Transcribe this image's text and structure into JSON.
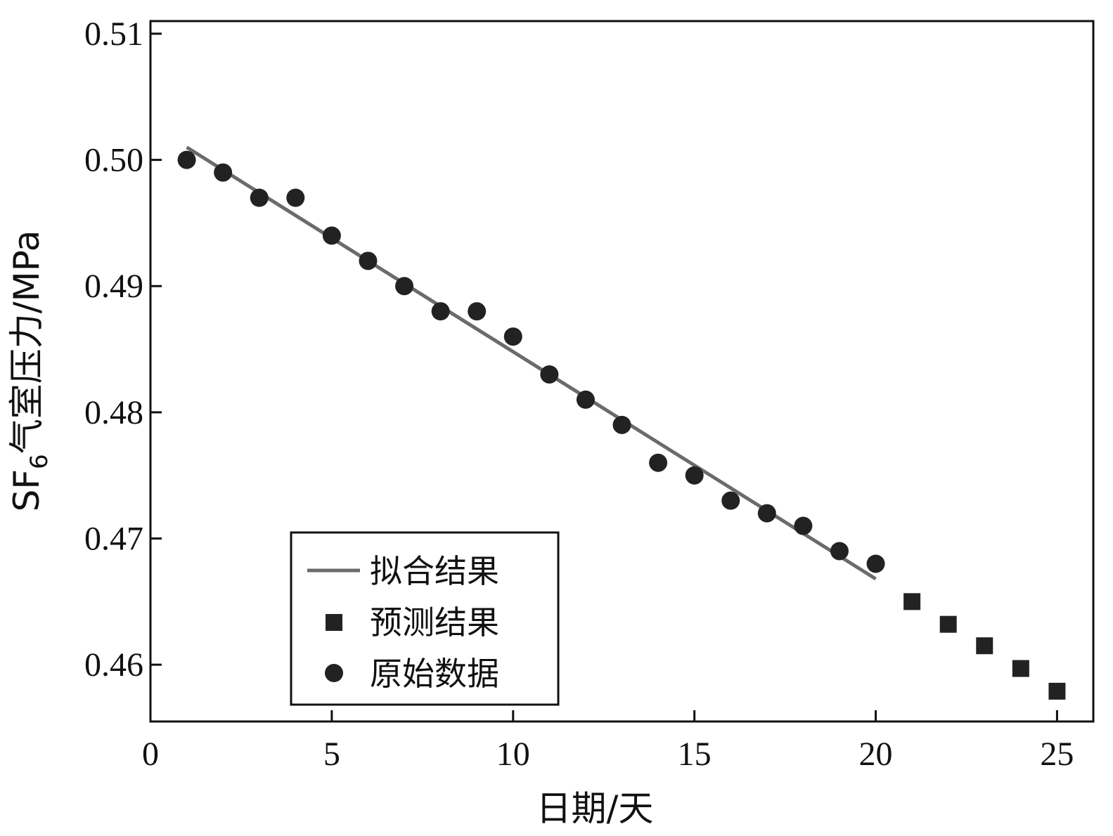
{
  "chart_data": {
    "type": "scatter",
    "xlabel": "日期/天",
    "ylabel_parts": {
      "pre": "SF",
      "sub": "6",
      "post": "气室压力/MPa"
    },
    "xlim": [
      0,
      26
    ],
    "ylim": [
      0.4555,
      0.511
    ],
    "x_ticks": [
      0,
      5,
      10,
      15,
      20,
      25
    ],
    "y_ticks": [
      0.46,
      0.47,
      0.48,
      0.49,
      0.5,
      0.51
    ],
    "y_tick_labels": [
      "0.46",
      "0.47",
      "0.48",
      "0.49",
      "0.50",
      "0.51"
    ],
    "grid": false,
    "legend_position": "bottom-left",
    "colors": {
      "line": "#6b6b6b",
      "marker": "#222222",
      "axis": "#111111"
    },
    "series": [
      {
        "name": "拟合结果",
        "kind": "line",
        "x": [
          1,
          20
        ],
        "y": [
          0.501,
          0.4668
        ]
      },
      {
        "name": "预测结果",
        "kind": "square",
        "x": [
          21,
          22,
          23,
          24,
          25
        ],
        "y": [
          0.465,
          0.4632,
          0.4615,
          0.4597,
          0.4579
        ]
      },
      {
        "name": "原始数据",
        "kind": "circle",
        "x": [
          1,
          2,
          3,
          4,
          5,
          6,
          7,
          8,
          9,
          10,
          11,
          12,
          13,
          14,
          15,
          16,
          17,
          18,
          19,
          20
        ],
        "y": [
          0.5,
          0.499,
          0.497,
          0.497,
          0.494,
          0.492,
          0.49,
          0.488,
          0.488,
          0.486,
          0.483,
          0.481,
          0.479,
          0.476,
          0.475,
          0.473,
          0.472,
          0.471,
          0.469,
          0.468
        ]
      }
    ]
  }
}
